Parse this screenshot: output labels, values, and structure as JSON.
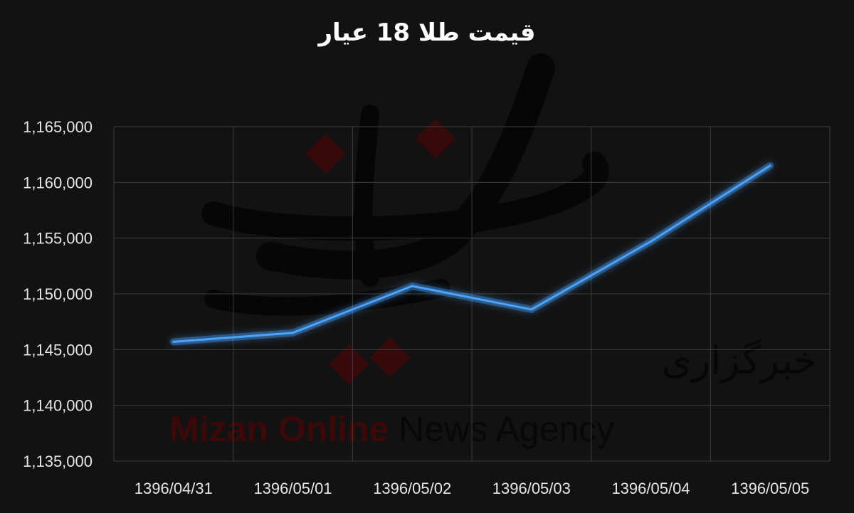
{
  "chart_data": {
    "type": "line",
    "title": "قیمت طلا 18 عیار",
    "categories": [
      "1396/04/31",
      "1396/05/01",
      "1396/05/02",
      "1396/05/03",
      "1396/05/04",
      "1396/05/05"
    ],
    "series": [
      {
        "values": [
          1145700,
          1146500,
          1150700,
          1148600,
          1154700,
          1161500
        ]
      }
    ],
    "ylim": [
      1135000,
      1165000
    ],
    "yticks": [
      1135000,
      1140000,
      1145000,
      1150000,
      1155000,
      1160000,
      1165000
    ],
    "ytick_labels": [
      "1,135,000",
      "1,140,000",
      "1,145,000",
      "1,150,000",
      "1,155,000",
      "1,160,000",
      "1,165,000"
    ],
    "grid": true,
    "line_color": "#4aa3ff",
    "background": "#121212"
  },
  "watermark": {
    "agency_en_1": "Mizan Online",
    "agency_en_2": " News Agency",
    "agency_fa": "خبرگزاری"
  }
}
